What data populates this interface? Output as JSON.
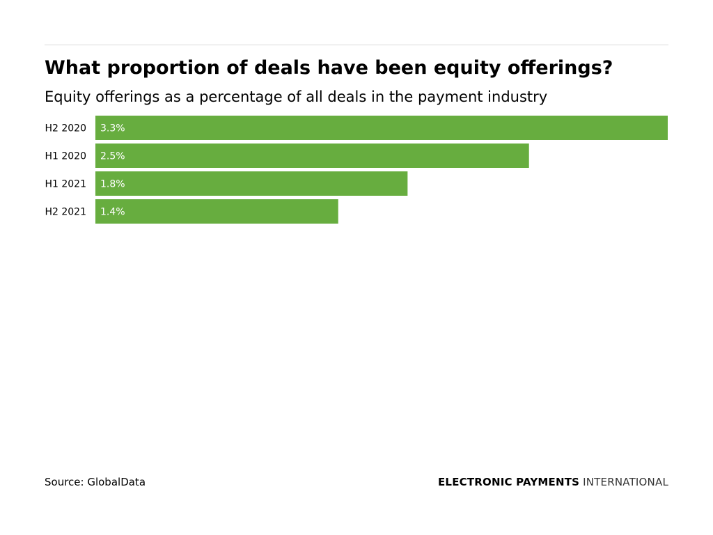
{
  "title": "What proportion of deals have been equity offerings?",
  "subtitle": "Equity offerings as a percentage of all deals in the payment industry",
  "chart_data": {
    "type": "bar",
    "orientation": "horizontal",
    "categories": [
      "H2 2020",
      "H1 2020",
      "H1 2021",
      "H2 2021"
    ],
    "values": [
      3.3,
      2.5,
      1.8,
      1.4
    ],
    "value_labels": [
      "3.3%",
      "2.5%",
      "1.8%",
      "1.4%"
    ],
    "xlim": [
      0,
      3.3
    ],
    "grid": false,
    "bar_color": "#67ad3f",
    "label_color": "#ffffff"
  },
  "footer": {
    "source": "Source: GlobalData",
    "brand_strong": "ELECTRONIC PAYMENTS",
    "brand_light": "INTERNATIONAL"
  }
}
